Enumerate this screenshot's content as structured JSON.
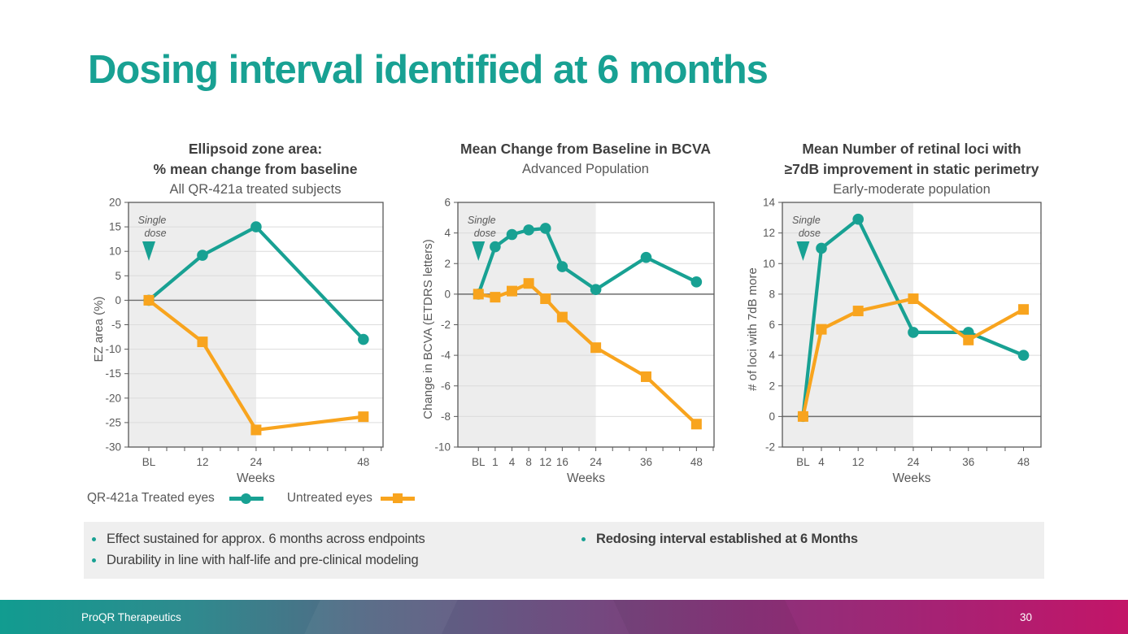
{
  "slide": {
    "title": "Dosing interval identified at 6 months",
    "footer": {
      "company": "ProQR Therapeutics",
      "page_number": "30"
    }
  },
  "legend": {
    "treated_label": "QR-421a Treated eyes",
    "untreated_label": "Untreated eyes"
  },
  "insights": {
    "bullets_left": [
      "Effect sustained for approx. 6 months across endpoints",
      "Durability in line with half-life and pre-clinical modeling"
    ],
    "bullet_right": "Redosing interval established at 6 Months"
  },
  "colors": {
    "teal": "#18A193",
    "orange": "#F8A41E",
    "text_dark": "#3F3F3F",
    "text_gray": "#595959",
    "grid": "#DCDCDC",
    "shade": "#EDEDED",
    "axis": "#595959",
    "zero_line": "#6E6E6E",
    "insight_bg": "#EFEFEF",
    "footer_gradient": [
      "#119C90",
      "#2F8A8E",
      "#556784",
      "#6F4D80",
      "#8C327A",
      "#A62274",
      "#C31568"
    ]
  },
  "chart_data": [
    {
      "type": "line",
      "title1": "Ellipsoid zone area:",
      "title2": "% mean change from baseline",
      "subtitle": "All QR-421a treated subjects",
      "ylabel": "EZ area (%)",
      "xlabel": "Weeks",
      "annotation": {
        "line1": "Single",
        "line2": "dose",
        "x": 0
      },
      "ylim": [
        -30,
        20
      ],
      "ytick_step": 5,
      "xlim": [
        -4.55,
        52.4
      ],
      "xticks_minor": {
        "from": 0,
        "step": 4,
        "to": 52
      },
      "xticks": [
        {
          "x": 0,
          "label": "BL"
        },
        {
          "x": 12,
          "label": "12"
        },
        {
          "x": 24,
          "label": "24"
        },
        {
          "x": 48,
          "label": "48"
        }
      ],
      "shade_to": 24,
      "series": [
        {
          "name": "QR-421a Treated eyes",
          "color": "teal",
          "marker": "circle",
          "points": [
            {
              "week": "BL",
              "x": 0,
              "y": 0
            },
            {
              "week": "12",
              "x": 12,
              "y": 9.2
            },
            {
              "week": "24",
              "x": 24,
              "y": 15
            },
            {
              "week": "48",
              "x": 48,
              "y": -8
            }
          ]
        },
        {
          "name": "Untreated eyes",
          "color": "orange",
          "marker": "square",
          "points": [
            {
              "week": "BL",
              "x": 0,
              "y": 0
            },
            {
              "week": "12",
              "x": 12,
              "y": -8.5
            },
            {
              "week": "24",
              "x": 24,
              "y": -26.5
            },
            {
              "week": "48",
              "x": 48,
              "y": -23.8
            }
          ]
        }
      ]
    },
    {
      "type": "line",
      "title1": "Mean Change from Baseline in BCVA",
      "subtitle": "Advanced Population",
      "ylabel": "Change in BCVA (ETDRS letters)",
      "xlabel": "Weeks",
      "annotation": {
        "line1": "Single",
        "line2": "dose",
        "x": -4
      },
      "ylim": [
        -10,
        6
      ],
      "ytick_step": 2,
      "xlim": [
        -8.9,
        52.2
      ],
      "xticks_minor": {
        "from": -4,
        "step": 4,
        "to": 52
      },
      "xticks": [
        {
          "x": -4,
          "label": "BL"
        },
        {
          "x": 0,
          "label": "1"
        },
        {
          "x": 4,
          "label": "4"
        },
        {
          "x": 8,
          "label": "8"
        },
        {
          "x": 12,
          "label": "12"
        },
        {
          "x": 16,
          "label": "16"
        },
        {
          "x": 24,
          "label": "24"
        },
        {
          "x": 36,
          "label": "36"
        },
        {
          "x": 48,
          "label": "48"
        }
      ],
      "shade_to": 24,
      "series": [
        {
          "name": "QR-421a Treated eyes",
          "color": "teal",
          "marker": "circle",
          "points": [
            {
              "week": "BL",
              "x": -4,
              "y": 0
            },
            {
              "week": "1",
              "x": 0,
              "y": 3.1
            },
            {
              "week": "4",
              "x": 4,
              "y": 3.9
            },
            {
              "week": "8",
              "x": 8,
              "y": 4.2
            },
            {
              "week": "12",
              "x": 12,
              "y": 4.3
            },
            {
              "week": "16",
              "x": 16,
              "y": 1.8
            },
            {
              "week": "24",
              "x": 24,
              "y": 0.3
            },
            {
              "week": "36",
              "x": 36,
              "y": 2.4
            },
            {
              "week": "48",
              "x": 48,
              "y": 0.8
            }
          ]
        },
        {
          "name": "Untreated eyes",
          "color": "orange",
          "marker": "square",
          "points": [
            {
              "week": "BL",
              "x": -4,
              "y": 0
            },
            {
              "week": "1",
              "x": 0,
              "y": -0.2
            },
            {
              "week": "4",
              "x": 4,
              "y": 0.2
            },
            {
              "week": "8",
              "x": 8,
              "y": 0.7
            },
            {
              "week": "12",
              "x": 12,
              "y": -0.3
            },
            {
              "week": "16",
              "x": 16,
              "y": -1.5
            },
            {
              "week": "24",
              "x": 24,
              "y": -3.5
            },
            {
              "week": "36",
              "x": 36,
              "y": -5.4
            },
            {
              "week": "48",
              "x": 48,
              "y": -8.5
            }
          ]
        }
      ]
    },
    {
      "type": "line",
      "title1": "Mean Number of retinal loci with",
      "title2": "≥7dB improvement in static perimetry",
      "subtitle": "Early-moderate population",
      "ylabel": "# of loci with 7dB more",
      "xlabel": "Weeks",
      "annotation": {
        "line1": "Single",
        "line2": "dose",
        "x": 0
      },
      "ylim": [
        -2,
        14
      ],
      "ytick_step": 2,
      "xlim": [
        -4.5,
        51.8
      ],
      "xticks_minor": {
        "from": 0,
        "step": 4,
        "to": 48
      },
      "xticks": [
        {
          "x": 0,
          "label": "BL"
        },
        {
          "x": 4,
          "label": "4"
        },
        {
          "x": 12,
          "label": "12"
        },
        {
          "x": 24,
          "label": "24"
        },
        {
          "x": 36,
          "label": "36"
        },
        {
          "x": 48,
          "label": "48"
        }
      ],
      "shade_to": 24,
      "series": [
        {
          "name": "QR-421a Treated eyes",
          "color": "teal",
          "marker": "circle",
          "points": [
            {
              "week": "BL",
              "x": 0,
              "y": 0
            },
            {
              "week": "4",
              "x": 4,
              "y": 11
            },
            {
              "week": "12",
              "x": 12,
              "y": 12.9
            },
            {
              "week": "24",
              "x": 24,
              "y": 5.5
            },
            {
              "week": "36",
              "x": 36,
              "y": 5.5
            },
            {
              "week": "48",
              "x": 48,
              "y": 4
            }
          ]
        },
        {
          "name": "Untreated eyes",
          "color": "orange",
          "marker": "square",
          "points": [
            {
              "week": "BL",
              "x": 0,
              "y": 0
            },
            {
              "week": "4",
              "x": 4,
              "y": 5.7
            },
            {
              "week": "12",
              "x": 12,
              "y": 6.9
            },
            {
              "week": "24",
              "x": 24,
              "y": 7.7
            },
            {
              "week": "36",
              "x": 36,
              "y": 5
            },
            {
              "week": "48",
              "x": 48,
              "y": 7
            }
          ]
        }
      ]
    }
  ]
}
